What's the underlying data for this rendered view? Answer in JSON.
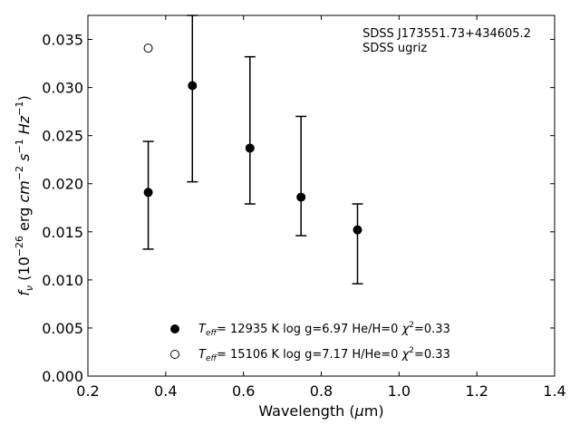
{
  "chart_data": {
    "type": "scatter",
    "xlim": [
      0.2,
      1.4
    ],
    "ylim": [
      0.0,
      0.0375
    ],
    "x_ticks": [
      "0.2",
      "0.4",
      "0.6",
      "0.8",
      "1.0",
      "1.2",
      "1.4"
    ],
    "y_ticks": [
      "0.000",
      "0.005",
      "0.010",
      "0.015",
      "0.020",
      "0.025",
      "0.030",
      "0.035"
    ],
    "xlabel": {
      "main": "Wavelength (",
      "mu": "μ",
      "unit": "m)"
    },
    "ylabel": {
      "f": "f",
      "nu": "ν",
      "pre": " (10",
      "exp1": "−26",
      "mid": " erg ",
      "cm": "cm",
      "exp2": "−2",
      "s": " s",
      "exp3": "−1",
      "hz": " Hz",
      "exp4": "−1",
      "post": ")"
    },
    "annotation": [
      "SDSS J173551.73+434605.2",
      "SDSS ugriz"
    ],
    "series": [
      {
        "marker": "filled",
        "points": [
          {
            "x": 0.3551,
            "y": 0.0191,
            "ylow": 0.0132,
            "yhigh": 0.0244
          },
          {
            "x": 0.4686,
            "y": 0.0302,
            "ylow": 0.0202,
            "yhigh": 0.0375
          },
          {
            "x": 0.6166,
            "y": 0.0237,
            "ylow": 0.0179,
            "yhigh": 0.0332
          },
          {
            "x": 0.748,
            "y": 0.0186,
            "ylow": 0.0146,
            "yhigh": 0.027
          },
          {
            "x": 0.8932,
            "y": 0.0152,
            "ylow": 0.0096,
            "yhigh": 0.0179
          }
        ]
      },
      {
        "marker": "open",
        "points": [
          {
            "x": 0.3551,
            "y": 0.0341
          }
        ]
      }
    ],
    "legend": [
      {
        "marker": "filled",
        "T": "T",
        "sub": "eff",
        "text": "= 12935 K  log g=6.97  He/H=0  ",
        "chi": "χ",
        "sup": "2",
        "end": "=0.33"
      },
      {
        "marker": "open",
        "T": "T",
        "sub": "eff",
        "text": "= 15106 K  log g=7.17  H/He=0  ",
        "chi": "χ",
        "sup": "2",
        "end": "=0.33"
      }
    ],
    "colors": {
      "marker": "#000000",
      "axes": "#000000",
      "background": "#ffffff"
    }
  }
}
